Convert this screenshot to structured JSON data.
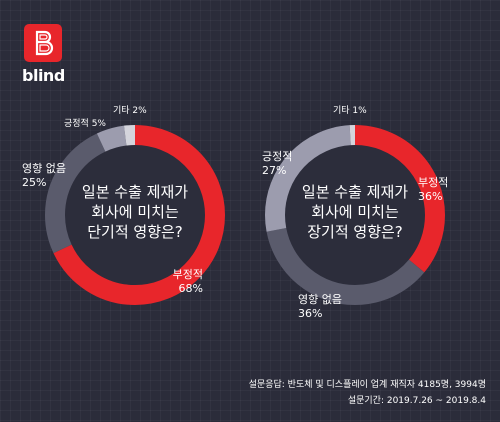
{
  "brand": {
    "name": "blind",
    "accent": "#e8262b"
  },
  "colors": {
    "background": "#2b2c3a",
    "negative": "#e8262b",
    "none": "#5a5b6c",
    "positive": "#9c9cae",
    "other": "#d4d4dc",
    "center_text": "#ffffff",
    "label_text": "#ffffff"
  },
  "chart_data": [
    {
      "type": "pie",
      "title": "일본 수출 제재가\n회사에 미치는\n단기적 영향은?",
      "slices": [
        {
          "label": "부정적",
          "value": 68,
          "display": "68%",
          "color": "#e8262b"
        },
        {
          "label": "영향 없음",
          "value": 25,
          "display": "25%",
          "color": "#5a5b6c"
        },
        {
          "label": "긍정적",
          "value": 5,
          "display": "5%",
          "color": "#9c9cae"
        },
        {
          "label": "기타",
          "value": 2,
          "display": "2%",
          "color": "#d4d4dc"
        }
      ]
    },
    {
      "type": "pie",
      "title": "일본 수출 제재가\n회사에 미치는\n장기적 영향은?",
      "slices": [
        {
          "label": "부정적",
          "value": 36,
          "display": "36%",
          "color": "#e8262b"
        },
        {
          "label": "영향 없음",
          "value": 36,
          "display": "36%",
          "color": "#5a5b6c"
        },
        {
          "label": "긍정적",
          "value": 27,
          "display": "27%",
          "color": "#9c9cae"
        },
        {
          "label": "기타",
          "value": 1,
          "display": "1%",
          "color": "#d4d4dc"
        }
      ]
    }
  ],
  "footer": {
    "respondents": "설문응답: 반도체 및 디스플레이 업계 재직자 4185명, 3994명",
    "period": "설문기간: 2019.7.26 ~ 2019.8.4"
  }
}
